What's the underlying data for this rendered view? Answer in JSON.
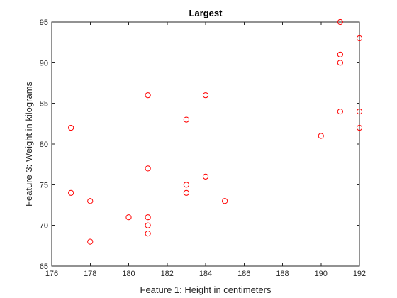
{
  "chart_data": {
    "type": "scatter",
    "title": "Largest",
    "xlabel": "Feature 1: Height in centimeters",
    "ylabel": "Feature 3: Weight in kilograms",
    "xlim": [
      176,
      192
    ],
    "ylim": [
      65,
      95
    ],
    "xticks": [
      "176",
      "178",
      "180",
      "182",
      "184",
      "186",
      "188",
      "190",
      "192"
    ],
    "yticks": [
      "65",
      "70",
      "75",
      "80",
      "85",
      "90",
      "95"
    ],
    "grid": false,
    "marker": "circle-open",
    "marker_color": "#ff0000",
    "points": [
      [
        177,
        82
      ],
      [
        177,
        74
      ],
      [
        178,
        73
      ],
      [
        178,
        68
      ],
      [
        180,
        71
      ],
      [
        181,
        86
      ],
      [
        181,
        77
      ],
      [
        181,
        71
      ],
      [
        181,
        70
      ],
      [
        181,
        69
      ],
      [
        183,
        83
      ],
      [
        183,
        75
      ],
      [
        183,
        74
      ],
      [
        184,
        86
      ],
      [
        184,
        76
      ],
      [
        185,
        73
      ],
      [
        190,
        81
      ],
      [
        191,
        95
      ],
      [
        191,
        91
      ],
      [
        191,
        90
      ],
      [
        191,
        84
      ],
      [
        192,
        93
      ],
      [
        192,
        84
      ],
      [
        192,
        82
      ]
    ]
  }
}
